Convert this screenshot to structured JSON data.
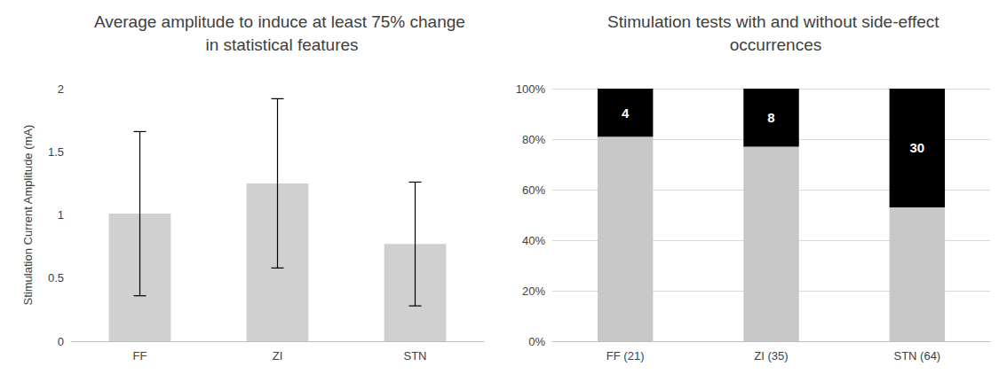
{
  "chart_data": [
    {
      "type": "bar",
      "title": "Average amplitude to induce at least 75% change in statistical features",
      "y_label": "Stimulation Current Amplitude (mA)",
      "categories": [
        "FF",
        "ZI",
        "STN"
      ],
      "values": [
        1.01,
        1.25,
        0.77
      ],
      "errors": [
        0.65,
        0.67,
        0.49
      ],
      "color": "#d0d0d0",
      "ylim": [
        0,
        2
      ],
      "yticks": [
        0,
        0.5,
        1,
        1.5,
        2
      ],
      "grid": false
    },
    {
      "type": "bar",
      "title": "Stimulation tests with and without side-effect occurrences",
      "categories": [
        "FF (21)",
        "ZI (35)",
        "STN (64)"
      ],
      "stacked": true,
      "series": [
        {
          "color": "#c8c8c8",
          "values": [
            81,
            77,
            53
          ]
        },
        {
          "color": "#000000",
          "values": [
            19,
            23,
            47
          ],
          "counts": [
            4,
            8,
            30
          ]
        }
      ],
      "ylim": [
        0,
        100
      ],
      "yticks": [
        {
          "value": 0,
          "label": "0%"
        },
        {
          "value": 20,
          "label": "20%"
        },
        {
          "value": 40,
          "label": "40%"
        },
        {
          "value": 60,
          "label": "60%"
        },
        {
          "value": 80,
          "label": "80%"
        },
        {
          "value": 100,
          "label": "100%"
        }
      ],
      "grid": true
    }
  ]
}
